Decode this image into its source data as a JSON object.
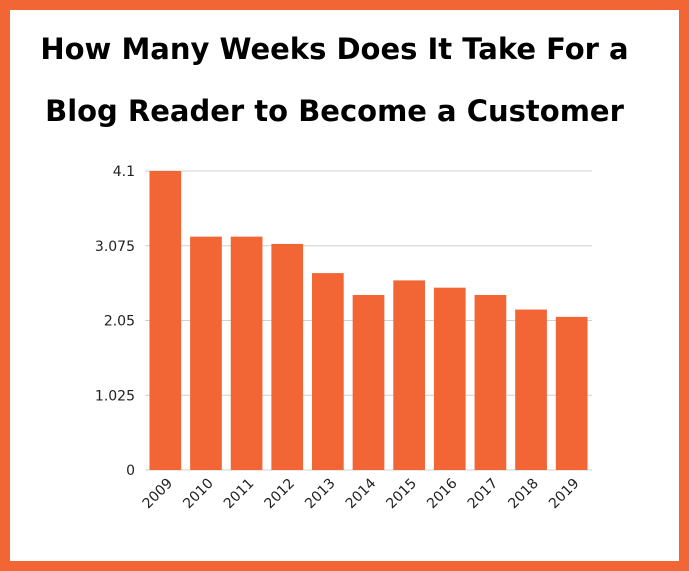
{
  "chart_data": {
    "type": "bar",
    "title": "How Many Weeks Does It Take For a Blog Reader to Become a Customer",
    "categories": [
      "2009",
      "2010",
      "2011",
      "2012",
      "2013",
      "2014",
      "2015",
      "2016",
      "2017",
      "2018",
      "2019"
    ],
    "values": [
      4.1,
      3.2,
      3.2,
      3.1,
      2.7,
      2.4,
      2.6,
      2.5,
      2.4,
      2.2,
      2.1
    ],
    "color": "#f26535",
    "ylim": [
      0,
      4.1
    ],
    "yticks": [
      0,
      1.025,
      2.05,
      3.075,
      4.1
    ],
    "grid": true
  }
}
